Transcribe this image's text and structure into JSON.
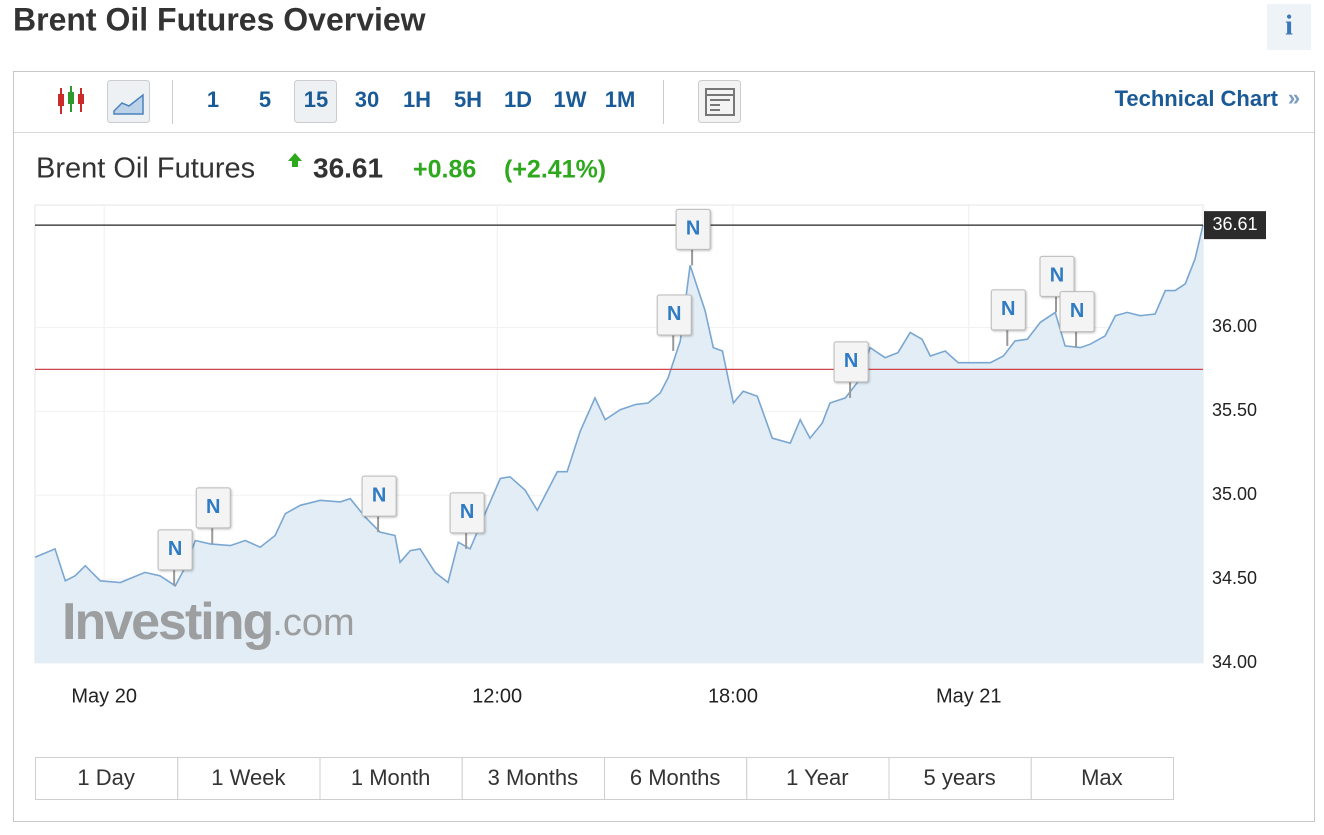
{
  "header": {
    "title": "Brent Oil Futures Overview",
    "info": "i"
  },
  "toolbar": {
    "intervals": [
      "1",
      "5",
      "15",
      "30",
      "1H",
      "5H",
      "1D",
      "1W",
      "1M"
    ],
    "active_interval": 2,
    "link": "Technical Chart",
    "link_arrow": "»"
  },
  "quote": {
    "name": "Brent Oil Futures",
    "price": 36.61,
    "change": "+0.86",
    "change_percent": "(+2.41%)"
  },
  "chart_data": {
    "type": "area",
    "color": "#7aa7d2",
    "fill": "#e3edf5",
    "x": [
      0.24,
      0.75,
      1.01,
      1.26,
      1.52,
      1.9,
      2.41,
      3.04,
      3.42,
      3.81,
      4.06,
      4.32,
      4.7,
      5.21,
      5.59,
      5.97,
      6.35,
      6.61,
      6.99,
      7.5,
      8.01,
      8.26,
      8.64,
      9.02,
      9.4,
      9.53,
      9.79,
      10.04,
      10.42,
      10.75,
      11.01,
      11.31,
      11.69,
      12.08,
      12.33,
      12.71,
      13.02,
      13.22,
      13.53,
      13.78,
      14.11,
      14.49,
      14.75,
      15.13,
      15.51,
      15.84,
      16.15,
      16.35,
      16.66,
      16.91,
      17.29,
      17.5,
      17.73,
      18.01,
      18.26,
      18.62,
      19.0,
      19.46,
      19.71,
      19.96,
      20.27,
      20.47,
      20.86,
      21.19,
      21.49,
      21.87,
      22.2,
      22.51,
      22.81,
      23.02,
      23.4,
      23.73,
      24.16,
      24.55,
      24.88,
      25.18,
      25.49,
      25.82,
      26.2,
      26.45,
      26.84,
      27.09,
      27.47,
      27.73,
      28.03,
      28.36,
      28.74,
      29.0,
      29.25,
      29.51,
      29.76,
      29.96
    ],
    "values": [
      34.63,
      34.68,
      34.49,
      34.52,
      34.58,
      34.49,
      34.48,
      34.54,
      34.52,
      34.46,
      34.57,
      34.73,
      34.71,
      34.7,
      34.73,
      34.69,
      34.76,
      34.89,
      34.94,
      34.97,
      34.96,
      34.98,
      34.87,
      34.78,
      34.76,
      34.6,
      34.67,
      34.68,
      34.54,
      34.48,
      34.72,
      34.68,
      34.89,
      35.1,
      35.11,
      35.03,
      34.91,
      35.0,
      35.14,
      35.14,
      35.38,
      35.58,
      35.45,
      35.51,
      35.54,
      35.55,
      35.61,
      35.7,
      35.92,
      36.37,
      36.1,
      35.88,
      35.86,
      35.55,
      35.62,
      35.59,
      35.34,
      35.31,
      35.45,
      35.34,
      35.43,
      35.55,
      35.58,
      35.68,
      35.88,
      35.82,
      35.85,
      35.97,
      35.93,
      35.83,
      35.86,
      35.79,
      35.79,
      35.79,
      35.83,
      35.92,
      35.93,
      36.03,
      36.09,
      35.89,
      35.88,
      35.9,
      35.95,
      36.07,
      36.09,
      36.07,
      36.08,
      36.22,
      36.22,
      36.26,
      36.41,
      36.61
    ],
    "xlim": [
      0.24,
      29.96
    ],
    "ylim": [
      34,
      36.73
    ],
    "xticks": [
      {
        "value": 2,
        "label": "May 20"
      },
      {
        "value": 12,
        "label": "12:00"
      },
      {
        "value": 18,
        "label": "18:00"
      },
      {
        "value": 24,
        "label": "May 21"
      }
    ],
    "yticks": [
      {
        "value": 34,
        "label": "34.00"
      },
      {
        "value": 34.5,
        "label": "34.50"
      },
      {
        "value": 35,
        "label": "35.00"
      },
      {
        "value": 35.5,
        "label": "35.50"
      },
      {
        "value": 36,
        "label": "36.00"
      }
    ],
    "grid": true,
    "previous_close": {
      "value": 35.75,
      "color": "#d0454c"
    },
    "news_markers": [
      {
        "label": "N",
        "x": 3.78,
        "y": 34.46
      },
      {
        "label": "N",
        "x": 4.75,
        "y": 34.71
      },
      {
        "label": "N",
        "x": 8.97,
        "y": 34.78
      },
      {
        "label": "N",
        "x": 11.21,
        "y": 34.68
      },
      {
        "label": "N",
        "x": 16.48,
        "y": 35.86
      },
      {
        "label": "N",
        "x": 16.96,
        "y": 36.37
      },
      {
        "label": "N",
        "x": 20.98,
        "y": 35.58
      },
      {
        "label": "N",
        "x": 24.98,
        "y": 35.89
      },
      {
        "label": "N",
        "x": 26.22,
        "y": 36.09
      },
      {
        "label": "N",
        "x": 26.73,
        "y": 35.88
      }
    ],
    "watermark": {
      "brand": "Investing",
      "suffix": ".com"
    }
  },
  "ranges": [
    "1 Day",
    "1 Week",
    "1 Month",
    "3 Months",
    "6 Months",
    "1 Year",
    "5 years",
    "Max"
  ]
}
